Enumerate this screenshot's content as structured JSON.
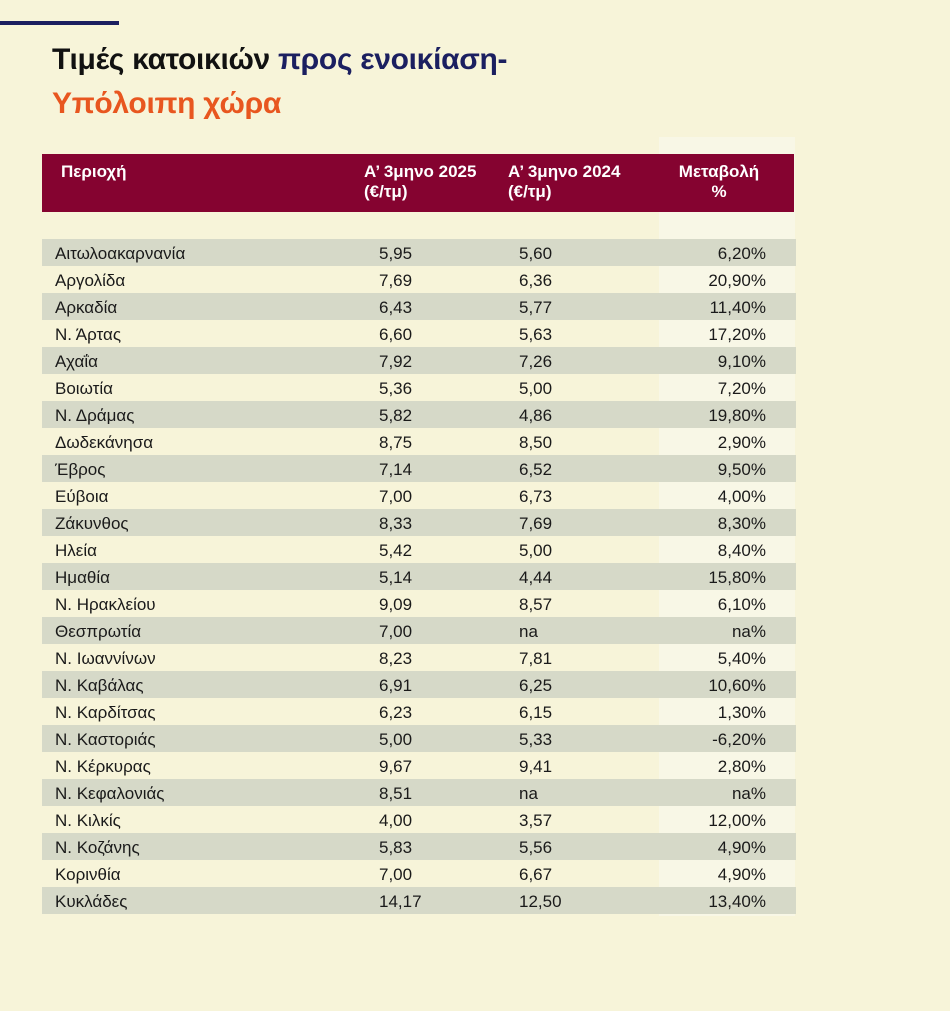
{
  "title": {
    "part1": "Τιμές κατοικιών",
    "part2": "προς ενοικίαση-",
    "part3": "Υπόλοιπη χώρα"
  },
  "table": {
    "headers": {
      "region": "Περιοχή",
      "y2025_line1": "Α’ 3μηνο 2025",
      "y2025_line2": "(€/τμ)",
      "y2024_line1": "Α’ 3μηνο 2024",
      "y2024_line2": "(€/τμ)",
      "change_line1": "Μεταβολή",
      "change_line2": "%"
    },
    "rows": [
      {
        "region": "Αιτωλοακαρνανία",
        "y2025": "5,95",
        "y2024": "5,60",
        "change": "6,20%"
      },
      {
        "region": "Αργολίδα",
        "y2025": "7,69",
        "y2024": "6,36",
        "change": "20,90%"
      },
      {
        "region": "Αρκαδία",
        "y2025": "6,43",
        "y2024": "5,77",
        "change": "11,40%"
      },
      {
        "region": "Ν. Άρτας",
        "y2025": "6,60",
        "y2024": "5,63",
        "change": "17,20%"
      },
      {
        "region": "Αχαΐα",
        "y2025": "7,92",
        "y2024": "7,26",
        "change": "9,10%"
      },
      {
        "region": "Βοιωτία",
        "y2025": "5,36",
        "y2024": "5,00",
        "change": "7,20%"
      },
      {
        "region": "Ν. Δράμας",
        "y2025": "5,82",
        "y2024": "4,86",
        "change": "19,80%"
      },
      {
        "region": "Δωδεκάνησα",
        "y2025": "8,75",
        "y2024": "8,50",
        "change": "2,90%"
      },
      {
        "region": "Έβρος",
        "y2025": "7,14",
        "y2024": "6,52",
        "change": "9,50%"
      },
      {
        "region": "Εύβοια",
        "y2025": "7,00",
        "y2024": "6,73",
        "change": "4,00%"
      },
      {
        "region": "Ζάκυνθος",
        "y2025": "8,33",
        "y2024": "7,69",
        "change": "8,30%"
      },
      {
        "region": "Ηλεία",
        "y2025": "5,42",
        "y2024": "5,00",
        "change": "8,40%"
      },
      {
        "region": "Ημαθία",
        "y2025": "5,14",
        "y2024": "4,44",
        "change": "15,80%"
      },
      {
        "region": "Ν. Ηρακλείου",
        "y2025": "9,09",
        "y2024": "8,57",
        "change": "6,10%"
      },
      {
        "region": "Θεσπρωτία",
        "y2025": "7,00",
        "y2024": "na",
        "change": "na%"
      },
      {
        "region": "Ν. Ιωαννίνων",
        "y2025": "8,23",
        "y2024": "7,81",
        "change": "5,40%"
      },
      {
        "region": "Ν. Καβάλας",
        "y2025": "6,91",
        "y2024": "6,25",
        "change": "10,60%"
      },
      {
        "region": "Ν. Καρδίτσας",
        "y2025": "6,23",
        "y2024": "6,15",
        "change": "1,30%"
      },
      {
        "region": "Ν. Καστοριάς",
        "y2025": "5,00",
        "y2024": "5,33",
        "change": "-6,20%"
      },
      {
        "region": "Ν. Κέρκυρας",
        "y2025": "9,67",
        "y2024": "9,41",
        "change": "2,80%"
      },
      {
        "region": "Ν. Κεφαλονιάς",
        "y2025": "8,51",
        "y2024": "na",
        "change": "na%"
      },
      {
        "region": "Ν. Κιλκίς",
        "y2025": "4,00",
        "y2024": "3,57",
        "change": "12,00%"
      },
      {
        "region": "Ν. Κοζάνης",
        "y2025": "5,83",
        "y2024": "5,56",
        "change": "4,90%"
      },
      {
        "region": "Κορινθία",
        "y2025": "7,00",
        "y2024": "6,67",
        "change": "4,90%"
      },
      {
        "region": "Κυκλάδες",
        "y2025": "14,17",
        "y2024": "12,50",
        "change": "13,40%"
      }
    ]
  },
  "colors": {
    "background": "#f7f4d9",
    "header_bg": "#850330",
    "title_navy": "#1b1f60",
    "title_orange": "#e8561f",
    "row_shade": "#d6d9c8"
  }
}
